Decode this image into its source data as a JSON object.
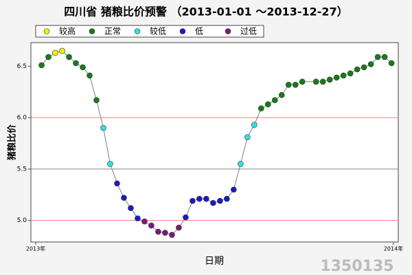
{
  "chart_data": {
    "type": "line",
    "title": "四川省 猪粮比价预警 （2013-01-01 ～2013-12-27）",
    "x_label": "日期",
    "y_label": "猪粮比价",
    "watermark": "1350135",
    "x": [
      6,
      13,
      20,
      27,
      34,
      41,
      48,
      55,
      62,
      69,
      76,
      83,
      90,
      97,
      104,
      111,
      118,
      125,
      132,
      139,
      146,
      153,
      160,
      167,
      174,
      181,
      188,
      195,
      202,
      209,
      216,
      223,
      230,
      237,
      244,
      251,
      258,
      265,
      272,
      286,
      293,
      300,
      307,
      314,
      321,
      328,
      335,
      342,
      349,
      356,
      363
    ],
    "xlim": [
      0,
      365
    ],
    "xticks": [
      {
        "value": 0,
        "label": "2013年"
      },
      {
        "value": 365,
        "label": "2014年"
      }
    ],
    "ylim": [
      4.79,
      6.73
    ],
    "yticks": [
      {
        "value": 5,
        "label": "5.0"
      },
      5.5,
      {
        "value": 6,
        "label": "6.0"
      },
      6.5
    ],
    "reference_lines": [
      {
        "value": 6,
        "color": "#f08080"
      },
      {
        "value": 5.5,
        "color": "#808080"
      },
      {
        "value": 5,
        "color": "#f08080"
      }
    ],
    "line_color": "#808080",
    "series": [
      {
        "name": "较高",
        "color": "#f0f000",
        "values": [
          null,
          null,
          6.63,
          6.65,
          null,
          null,
          null,
          null,
          null,
          null,
          null,
          null,
          null,
          null,
          null,
          null,
          null,
          null,
          null,
          null,
          null,
          null,
          null,
          null,
          null,
          null,
          null,
          null,
          null,
          null,
          null,
          null,
          null,
          null,
          null,
          null,
          null,
          null,
          null,
          null,
          null,
          null,
          null,
          null,
          null,
          null,
          null,
          null,
          null,
          null,
          null
        ]
      },
      {
        "name": "正常",
        "color": "#1a7a1a",
        "values": [
          6.51,
          6.59,
          null,
          null,
          6.59,
          6.53,
          6.49,
          6.41,
          6.17,
          null,
          null,
          null,
          null,
          null,
          null,
          null,
          null,
          null,
          null,
          null,
          null,
          null,
          null,
          null,
          null,
          null,
          null,
          null,
          null,
          null,
          null,
          null,
          6.09,
          6.13,
          6.17,
          6.22,
          6.32,
          6.32,
          6.35,
          6.35,
          6.35,
          6.37,
          6.39,
          6.41,
          6.43,
          6.47,
          6.49,
          6.52,
          6.59,
          6.59,
          6.53
        ]
      },
      {
        "name": "较低",
        "color": "#30e0e0",
        "values": [
          null,
          null,
          null,
          null,
          null,
          null,
          null,
          null,
          null,
          5.9,
          5.55,
          null,
          null,
          null,
          null,
          null,
          null,
          null,
          null,
          null,
          null,
          null,
          null,
          null,
          null,
          null,
          null,
          null,
          null,
          5.55,
          5.81,
          5.93,
          null,
          null,
          null,
          null,
          null,
          null,
          null,
          null,
          null,
          null,
          null,
          null,
          null,
          null,
          null,
          null,
          null,
          null,
          null
        ]
      },
      {
        "name": "低",
        "color": "#1a1acc",
        "values": [
          null,
          null,
          null,
          null,
          null,
          null,
          null,
          null,
          null,
          null,
          null,
          5.36,
          5.22,
          5.12,
          5.02,
          null,
          null,
          null,
          null,
          null,
          null,
          5.03,
          5.19,
          5.21,
          5.21,
          5.17,
          5.19,
          5.21,
          5.3,
          null,
          null,
          null,
          null,
          null,
          null,
          null,
          null,
          null,
          null,
          null,
          null,
          null,
          null,
          null,
          null,
          null,
          null,
          null,
          null,
          null,
          null
        ]
      },
      {
        "name": "过低",
        "color": "#7a1a7a",
        "values": [
          null,
          null,
          null,
          null,
          null,
          null,
          null,
          null,
          null,
          null,
          null,
          null,
          null,
          null,
          null,
          4.99,
          4.95,
          4.89,
          4.88,
          4.86,
          4.93,
          null,
          null,
          null,
          null,
          null,
          null,
          null,
          null,
          null,
          null,
          null,
          null,
          null,
          null,
          null,
          null,
          null,
          null,
          null,
          null,
          null,
          null,
          null,
          null,
          null,
          null,
          null,
          null,
          null,
          null
        ]
      }
    ]
  }
}
